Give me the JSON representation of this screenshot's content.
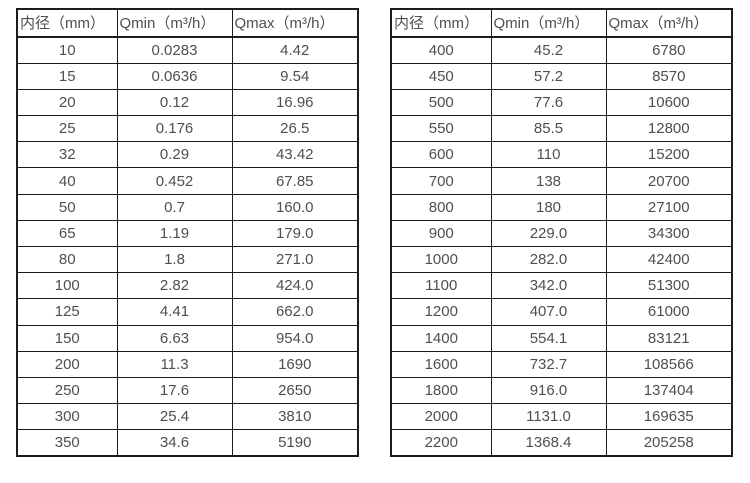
{
  "colors": {
    "background": "#ffffff",
    "border": "#1c1c1c",
    "text": "#4f4f4f"
  },
  "tables": [
    {
      "name": "small-diameters",
      "headers": [
        "内径（mm）",
        "Qmin（m³/h）",
        "Qmax（m³/h）"
      ],
      "rows": [
        [
          "10",
          "0.0283",
          "4.42"
        ],
        [
          "15",
          "0.0636",
          "9.54"
        ],
        [
          "20",
          "0.12",
          "16.96"
        ],
        [
          "25",
          "0.176",
          "26.5"
        ],
        [
          "32",
          "0.29",
          "43.42"
        ],
        [
          "40",
          "0.452",
          "67.85"
        ],
        [
          "50",
          "0.7",
          "160.0"
        ],
        [
          "65",
          "1.19",
          "179.0"
        ],
        [
          "80",
          "1.8",
          "271.0"
        ],
        [
          "100",
          "2.82",
          "424.0"
        ],
        [
          "125",
          "4.41",
          "662.0"
        ],
        [
          "150",
          "6.63",
          "954.0"
        ],
        [
          "200",
          "11.3",
          "1690"
        ],
        [
          "250",
          "17.6",
          "2650"
        ],
        [
          "300",
          "25.4",
          "3810"
        ],
        [
          "350",
          "34.6",
          "5190"
        ]
      ]
    },
    {
      "name": "large-diameters",
      "headers": [
        "内径（mm）",
        "Qmin（m³/h）",
        "Qmax（m³/h）"
      ],
      "rows": [
        [
          "400",
          "45.2",
          "6780"
        ],
        [
          "450",
          "57.2",
          "8570"
        ],
        [
          "500",
          "77.6",
          "10600"
        ],
        [
          "550",
          "85.5",
          "12800"
        ],
        [
          "600",
          "110",
          "15200"
        ],
        [
          "700",
          "138",
          "20700"
        ],
        [
          "800",
          "180",
          "27100"
        ],
        [
          "900",
          "229.0",
          "34300"
        ],
        [
          "1000",
          "282.0",
          "42400"
        ],
        [
          "1100",
          "342.0",
          "51300"
        ],
        [
          "1200",
          "407.0",
          "61000"
        ],
        [
          "1400",
          "554.1",
          "83121"
        ],
        [
          "1600",
          "732.7",
          "108566"
        ],
        [
          "1800",
          "916.0",
          "137404"
        ],
        [
          "2000",
          "1131.0",
          "169635"
        ],
        [
          "2200",
          "1368.4",
          "205258"
        ]
      ]
    }
  ]
}
